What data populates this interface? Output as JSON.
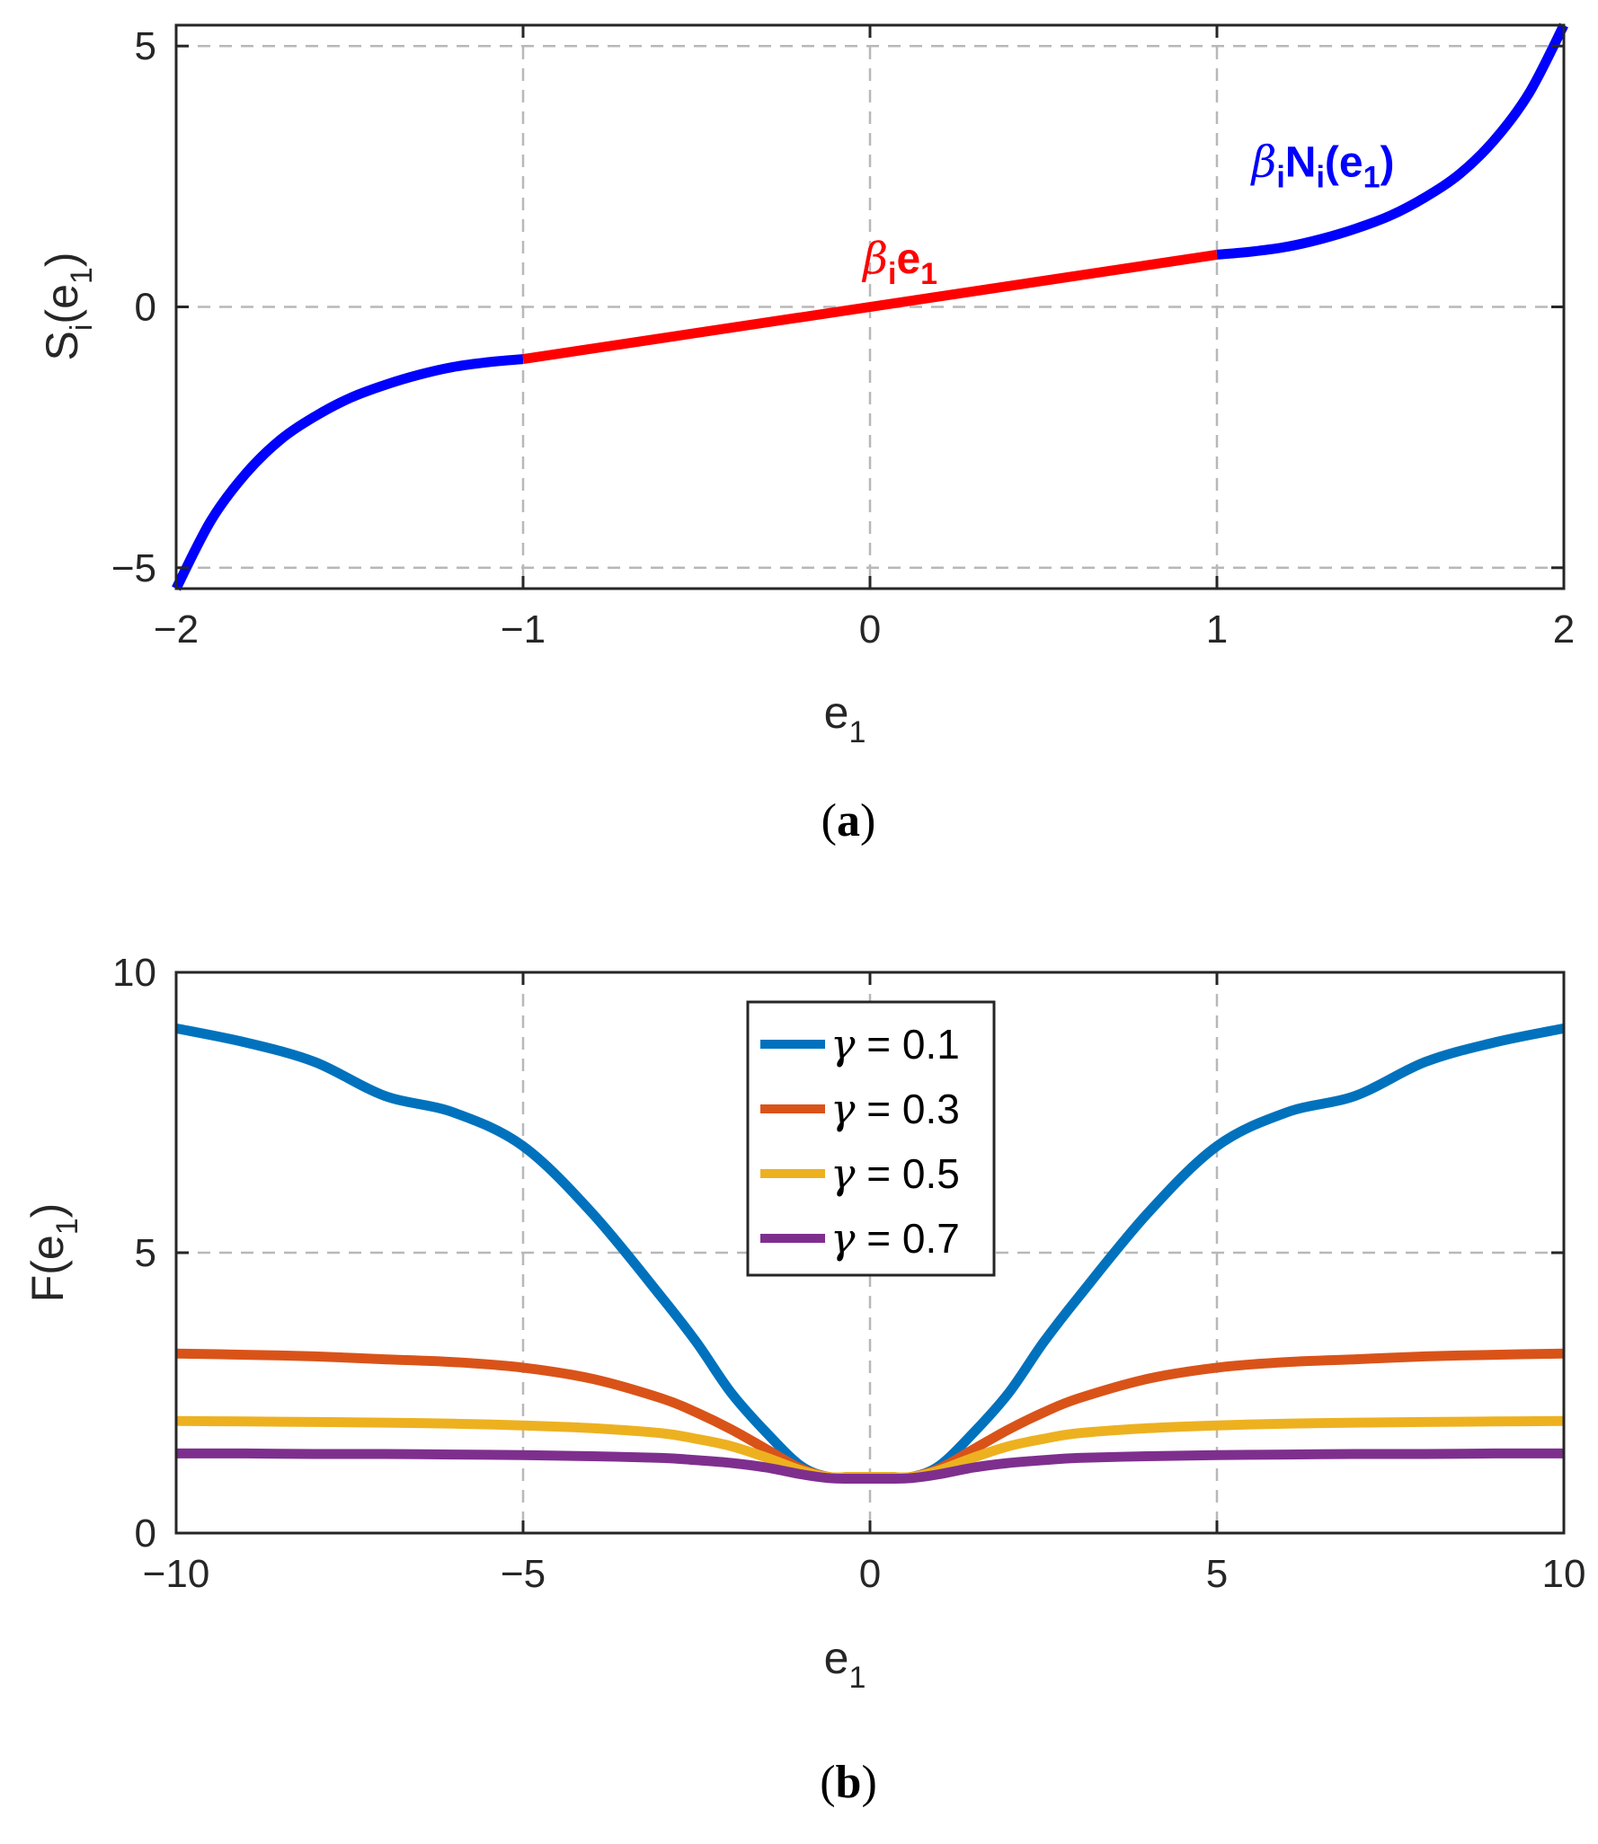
{
  "chart_data": [
    {
      "type": "line",
      "panel_label": "a",
      "xlabel": "e",
      "xlabel_sub": "1",
      "ylabel": "S",
      "ylabel_sub": "i",
      "ylabel_arg": "(e",
      "ylabel_arg_sub": "1",
      "ylabel_close": ")",
      "xlim": [
        -2,
        2
      ],
      "ylim": [
        -5.4,
        5.4
      ],
      "xticks": [
        -2,
        -1,
        0,
        1,
        2
      ],
      "xtick_labels": [
        "−2",
        "−1",
        "0",
        "1",
        "2"
      ],
      "yticks": [
        -5,
        0,
        5
      ],
      "ytick_labels": [
        "−5",
        "0",
        "5"
      ],
      "grid": true,
      "series": [
        {
          "name": "β_i N_i(e_1)",
          "color": "#0000ff",
          "x": [
            -2.0,
            -1.9,
            -1.8,
            -1.7,
            -1.6,
            -1.5,
            -1.4,
            -1.3,
            -1.2,
            -1.1,
            -1.0
          ],
          "y": [
            -5.4,
            -4.1,
            -3.2,
            -2.55,
            -2.1,
            -1.75,
            -1.5,
            -1.3,
            -1.15,
            -1.06,
            -1.0
          ]
        },
        {
          "name": "β_i e_1",
          "color": "#ff0000",
          "x": [
            -1.0,
            1.0
          ],
          "y": [
            -1.0,
            1.0
          ]
        },
        {
          "name": "β_i N_i(e_1)",
          "color": "#0000ff",
          "x": [
            1.0,
            1.1,
            1.2,
            1.3,
            1.4,
            1.5,
            1.6,
            1.7,
            1.8,
            1.9,
            2.0
          ],
          "y": [
            1.0,
            1.06,
            1.15,
            1.3,
            1.5,
            1.75,
            2.1,
            2.55,
            3.2,
            4.1,
            5.4
          ]
        }
      ],
      "annotations": [
        {
          "greek": "β",
          "sub1": "i",
          "main": "e",
          "sub2": "1",
          "color": "#ff0000",
          "x": -0.02,
          "y": 0.65
        },
        {
          "greek": "β",
          "sub1": "i",
          "main": "N",
          "sub2": "i",
          "tail": "(e",
          "sub3": "1",
          "end": ")",
          "color": "#0000ff",
          "x": 1.1,
          "y": 2.5
        }
      ]
    },
    {
      "type": "line",
      "panel_label": "b",
      "xlabel": "e",
      "xlabel_sub": "1",
      "ylabel": "F(e",
      "ylabel_sub": "1",
      "ylabel_close": ")",
      "xlim": [
        -10,
        10
      ],
      "ylim": [
        0,
        10
      ],
      "xticks": [
        -10,
        -5,
        0,
        5,
        10
      ],
      "xtick_labels": [
        "−10",
        "−5",
        "0",
        "5",
        "10"
      ],
      "yticks": [
        0,
        5,
        10
      ],
      "ytick_labels": [
        "0",
        "5",
        "10"
      ],
      "grid": true,
      "legend_position": "top-center",
      "x": [
        -10,
        -9,
        -8,
        -7,
        -6,
        -5,
        -4,
        -3,
        -2.5,
        -2,
        -1.5,
        -1,
        -0.6,
        -0.3,
        0,
        0.3,
        0.6,
        1,
        1.5,
        2,
        2.5,
        3,
        4,
        5,
        6,
        7,
        8,
        9,
        10
      ],
      "series": [
        {
          "name": "γ = 0.1",
          "greek": "γ",
          "label": " = 0.1",
          "color": "#0072bd",
          "values": [
            9.0,
            8.75,
            8.4,
            7.8,
            7.5,
            6.9,
            5.7,
            4.2,
            3.4,
            2.5,
            1.8,
            1.2,
            1.0,
            1.0,
            1.0,
            1.0,
            1.0,
            1.2,
            1.8,
            2.5,
            3.4,
            4.2,
            5.7,
            6.9,
            7.5,
            7.8,
            8.4,
            8.75,
            9.0
          ]
        },
        {
          "name": "γ = 0.3",
          "greek": "γ",
          "label": " = 0.3",
          "color": "#d95319",
          "values": [
            3.2,
            3.18,
            3.15,
            3.1,
            3.05,
            2.95,
            2.75,
            2.4,
            2.15,
            1.85,
            1.5,
            1.15,
            1.0,
            1.0,
            1.0,
            1.0,
            1.0,
            1.15,
            1.5,
            1.85,
            2.15,
            2.4,
            2.75,
            2.95,
            3.05,
            3.1,
            3.15,
            3.18,
            3.2
          ]
        },
        {
          "name": "γ = 0.5",
          "greek": "γ",
          "label": " = 0.5",
          "color": "#edb120",
          "values": [
            2.0,
            1.99,
            1.98,
            1.97,
            1.95,
            1.92,
            1.87,
            1.78,
            1.68,
            1.55,
            1.35,
            1.12,
            1.0,
            1.0,
            1.0,
            1.0,
            1.0,
            1.12,
            1.35,
            1.55,
            1.68,
            1.78,
            1.87,
            1.92,
            1.95,
            1.97,
            1.98,
            1.99,
            2.0
          ]
        },
        {
          "name": "γ = 0.7",
          "greek": "γ",
          "label": " = 0.7",
          "color": "#7e2f8e",
          "values": [
            1.42,
            1.42,
            1.41,
            1.41,
            1.4,
            1.39,
            1.37,
            1.34,
            1.3,
            1.25,
            1.17,
            1.05,
            0.98,
            0.97,
            0.97,
            0.97,
            0.98,
            1.05,
            1.17,
            1.25,
            1.3,
            1.34,
            1.37,
            1.39,
            1.4,
            1.41,
            1.41,
            1.42,
            1.42
          ]
        }
      ]
    }
  ]
}
